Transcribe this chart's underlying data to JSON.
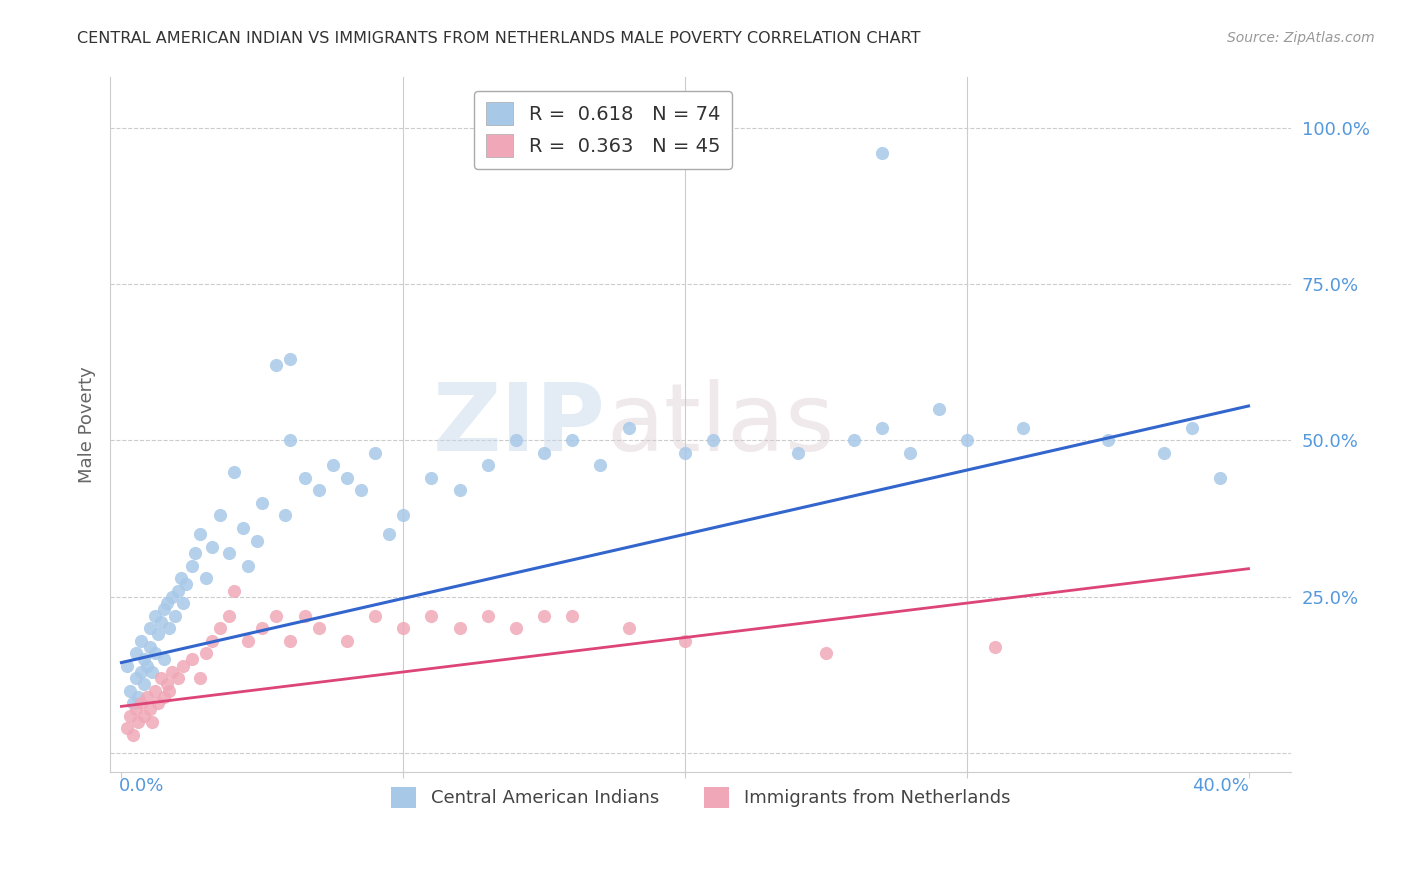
{
  "title": "CENTRAL AMERICAN INDIAN VS IMMIGRANTS FROM NETHERLANDS MALE POVERTY CORRELATION CHART",
  "source": "Source: ZipAtlas.com",
  "ylabel": "Male Poverty",
  "yticks": [
    0.0,
    0.25,
    0.5,
    0.75,
    1.0
  ],
  "ytick_labels": [
    "",
    "25.0%",
    "50.0%",
    "75.0%",
    "100.0%"
  ],
  "xmin": -0.004,
  "xmax": 0.415,
  "ymin": -0.03,
  "ymax": 1.08,
  "blue_R": 0.618,
  "blue_N": 74,
  "pink_R": 0.363,
  "pink_N": 45,
  "blue_color": "#a8c8e8",
  "pink_color": "#f0a8b8",
  "blue_line_color": "#3366cc",
  "pink_line_color": "#dd4477",
  "watermark_zip": "ZIP",
  "watermark_atlas": "atlas",
  "legend_label_blue": "Central American Indians",
  "legend_label_pink": "Immigrants from Netherlands",
  "blue_scatter_x": [
    0.002,
    0.003,
    0.004,
    0.005,
    0.005,
    0.006,
    0.007,
    0.007,
    0.008,
    0.008,
    0.009,
    0.01,
    0.01,
    0.011,
    0.012,
    0.012,
    0.013,
    0.014,
    0.015,
    0.015,
    0.016,
    0.017,
    0.018,
    0.019,
    0.02,
    0.021,
    0.022,
    0.023,
    0.025,
    0.026,
    0.028,
    0.03,
    0.032,
    0.035,
    0.038,
    0.04,
    0.043,
    0.045,
    0.048,
    0.05,
    0.055,
    0.058,
    0.06,
    0.065,
    0.07,
    0.075,
    0.08,
    0.085,
    0.09,
    0.095,
    0.1,
    0.11,
    0.12,
    0.13,
    0.14,
    0.15,
    0.16,
    0.17,
    0.18,
    0.2,
    0.21,
    0.24,
    0.26,
    0.27,
    0.28,
    0.29,
    0.3,
    0.32,
    0.35,
    0.37,
    0.38,
    0.39,
    0.06,
    0.27
  ],
  "blue_scatter_y": [
    0.14,
    0.1,
    0.08,
    0.12,
    0.16,
    0.09,
    0.13,
    0.18,
    0.11,
    0.15,
    0.14,
    0.17,
    0.2,
    0.13,
    0.16,
    0.22,
    0.19,
    0.21,
    0.15,
    0.23,
    0.24,
    0.2,
    0.25,
    0.22,
    0.26,
    0.28,
    0.24,
    0.27,
    0.3,
    0.32,
    0.35,
    0.28,
    0.33,
    0.38,
    0.32,
    0.45,
    0.36,
    0.3,
    0.34,
    0.4,
    0.62,
    0.38,
    0.5,
    0.44,
    0.42,
    0.46,
    0.44,
    0.42,
    0.48,
    0.35,
    0.38,
    0.44,
    0.42,
    0.46,
    0.5,
    0.48,
    0.5,
    0.46,
    0.52,
    0.48,
    0.5,
    0.48,
    0.5,
    0.52,
    0.48,
    0.55,
    0.5,
    0.52,
    0.5,
    0.48,
    0.52,
    0.44,
    0.63,
    0.96
  ],
  "pink_scatter_x": [
    0.002,
    0.003,
    0.004,
    0.005,
    0.006,
    0.007,
    0.008,
    0.009,
    0.01,
    0.011,
    0.012,
    0.013,
    0.014,
    0.015,
    0.016,
    0.017,
    0.018,
    0.02,
    0.022,
    0.025,
    0.028,
    0.03,
    0.032,
    0.035,
    0.038,
    0.04,
    0.045,
    0.05,
    0.055,
    0.06,
    0.065,
    0.07,
    0.08,
    0.09,
    0.1,
    0.11,
    0.12,
    0.13,
    0.14,
    0.15,
    0.16,
    0.18,
    0.2,
    0.25,
    0.31
  ],
  "pink_scatter_y": [
    0.04,
    0.06,
    0.03,
    0.07,
    0.05,
    0.08,
    0.06,
    0.09,
    0.07,
    0.05,
    0.1,
    0.08,
    0.12,
    0.09,
    0.11,
    0.1,
    0.13,
    0.12,
    0.14,
    0.15,
    0.12,
    0.16,
    0.18,
    0.2,
    0.22,
    0.26,
    0.18,
    0.2,
    0.22,
    0.18,
    0.22,
    0.2,
    0.18,
    0.22,
    0.2,
    0.22,
    0.2,
    0.22,
    0.2,
    0.22,
    0.22,
    0.2,
    0.18,
    0.16,
    0.17
  ],
  "blue_trend_x": [
    0.0,
    0.4
  ],
  "blue_trend_y": [
    0.145,
    0.555
  ],
  "pink_trend_x": [
    0.0,
    0.4
  ],
  "pink_trend_y": [
    0.075,
    0.295
  ],
  "background_color": "#ffffff",
  "grid_color": "#cccccc",
  "title_color": "#333333",
  "tick_label_color": "#5599dd"
}
